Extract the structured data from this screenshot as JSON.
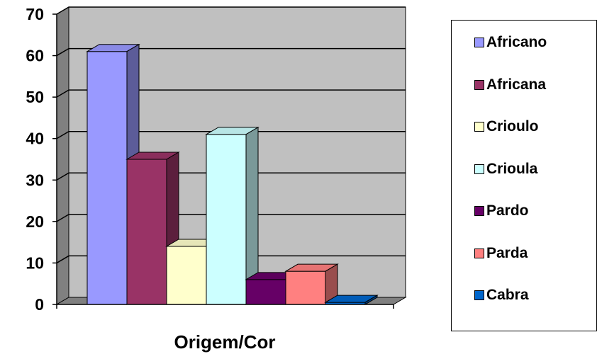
{
  "chart_data": {
    "type": "bar",
    "title": "",
    "xlabel": "Origem/Cor",
    "ylabel": "",
    "ylim": [
      0,
      70
    ],
    "yticks": [
      0,
      10,
      20,
      30,
      40,
      50,
      60,
      70
    ],
    "grid": true,
    "three_d": true,
    "legend_position": "right",
    "series": [
      {
        "name": "Africano",
        "value": 61,
        "color": "#9999ff"
      },
      {
        "name": "Africana",
        "value": 35,
        "color": "#993366"
      },
      {
        "name": "Crioulo",
        "value": 14,
        "color": "#ffffcc"
      },
      {
        "name": "Crioula",
        "value": 41,
        "color": "#ccffff"
      },
      {
        "name": "Pardo",
        "value": 6,
        "color": "#660066"
      },
      {
        "name": "Parda",
        "value": 8,
        "color": "#ff8080"
      },
      {
        "name": "Cabra",
        "value": 0.5,
        "color": "#0066cc"
      }
    ],
    "wall_color": "#c0c0c0",
    "side_wall_color": "#808080"
  }
}
